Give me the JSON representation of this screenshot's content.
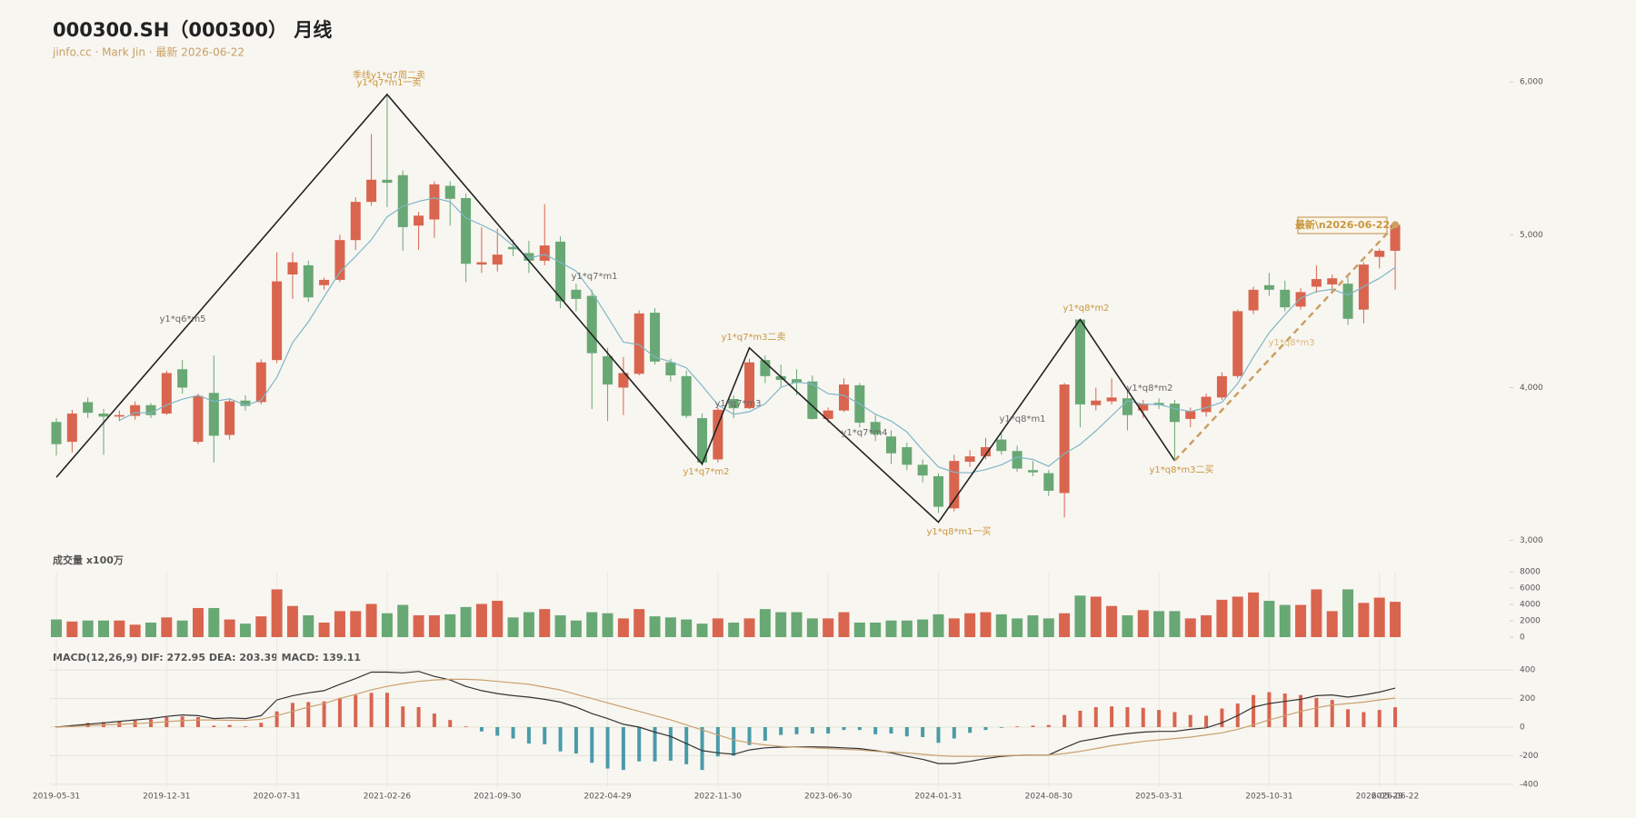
{
  "chart_data": {
    "type": "candlestick",
    "title": "000300.SH（000300） 月线",
    "subtitle": "jinfo.cc · Mark Jin · 最新 2026-06-22",
    "categories": [
      "2019-05-31",
      null,
      null,
      null,
      null,
      null,
      null,
      "2019-12-31",
      null,
      null,
      null,
      null,
      null,
      null,
      "2020-07-31",
      null,
      null,
      null,
      null,
      null,
      null,
      "2021-02-26",
      null,
      null,
      null,
      null,
      null,
      null,
      "2021-09-30",
      null,
      null,
      null,
      null,
      null,
      null,
      "2022-04-29",
      null,
      null,
      null,
      null,
      null,
      null,
      "2022-11-30",
      null,
      null,
      null,
      null,
      null,
      null,
      "2023-06-30",
      null,
      null,
      null,
      null,
      null,
      null,
      "2024-01-31",
      null,
      null,
      null,
      null,
      null,
      null,
      "2024-08-30",
      null,
      null,
      null,
      null,
      null,
      null,
      "2025-03-31",
      null,
      null,
      null,
      null,
      null,
      null,
      "2025-10-31",
      null,
      null,
      null,
      null,
      null,
      null,
      "2026-05-29",
      "2026-06-22"
    ],
    "ohlc": [
      [
        3775,
        3800,
        3555,
        3630
      ],
      [
        3645,
        3855,
        3575,
        3830
      ],
      [
        3905,
        3935,
        3800,
        3835
      ],
      [
        3830,
        3860,
        3560,
        3810
      ],
      [
        3810,
        3850,
        3780,
        3820
      ],
      [
        3815,
        3910,
        3790,
        3885
      ],
      [
        3885,
        3900,
        3800,
        3820
      ],
      [
        3830,
        4110,
        3820,
        4095
      ],
      [
        4120,
        4180,
        3960,
        4000
      ],
      [
        3645,
        3960,
        3630,
        3945
      ],
      [
        3965,
        4210,
        3510,
        3685
      ],
      [
        3690,
        3925,
        3660,
        3910
      ],
      [
        3915,
        3950,
        3850,
        3880
      ],
      [
        3905,
        4185,
        3890,
        4165
      ],
      [
        4180,
        4885,
        4160,
        4695
      ],
      [
        4740,
        4885,
        4580,
        4820
      ],
      [
        4800,
        4830,
        4560,
        4590
      ],
      [
        4670,
        4720,
        4640,
        4705
      ],
      [
        4705,
        5000,
        4690,
        4965
      ],
      [
        4965,
        5245,
        4900,
        5215
      ],
      [
        5215,
        5660,
        5190,
        5360
      ],
      [
        5360,
        5920,
        5180,
        5340
      ],
      [
        5390,
        5420,
        4895,
        5050
      ],
      [
        5060,
        5150,
        4900,
        5125
      ],
      [
        5100,
        5350,
        4980,
        5330
      ],
      [
        5320,
        5350,
        5060,
        5235
      ],
      [
        5240,
        5270,
        4690,
        4810
      ],
      [
        4805,
        5050,
        4750,
        4820
      ],
      [
        4805,
        5040,
        4760,
        4870
      ],
      [
        4920,
        4970,
        4860,
        4905
      ],
      [
        4880,
        4960,
        4750,
        4830
      ],
      [
        4830,
        5200,
        4800,
        4930
      ],
      [
        4955,
        4990,
        4520,
        4565
      ],
      [
        4640,
        4680,
        4500,
        4580
      ],
      [
        4600,
        4640,
        3860,
        4225
      ],
      [
        4205,
        4260,
        3780,
        4020
      ],
      [
        4000,
        4200,
        3820,
        4095
      ],
      [
        4090,
        4505,
        4080,
        4485
      ],
      [
        4490,
        4520,
        4150,
        4170
      ],
      [
        4165,
        4190,
        4040,
        4080
      ],
      [
        4075,
        4110,
        3800,
        3815
      ],
      [
        3800,
        3830,
        3490,
        3510
      ],
      [
        3530,
        3870,
        3510,
        3855
      ],
      [
        3925,
        3950,
        3800,
        3865
      ],
      [
        3865,
        4190,
        3860,
        4165
      ],
      [
        4180,
        4210,
        4030,
        4075
      ],
      [
        4075,
        4150,
        4000,
        4050
      ],
      [
        4055,
        4120,
        3950,
        4030
      ],
      [
        4040,
        4080,
        3790,
        3795
      ],
      [
        3795,
        3870,
        3770,
        3850
      ],
      [
        3850,
        4060,
        3840,
        4020
      ],
      [
        4015,
        4030,
        3740,
        3770
      ],
      [
        3775,
        3820,
        3650,
        3695
      ],
      [
        3680,
        3720,
        3500,
        3570
      ],
      [
        3610,
        3640,
        3460,
        3495
      ],
      [
        3495,
        3530,
        3380,
        3425
      ],
      [
        3420,
        3440,
        3180,
        3220
      ],
      [
        3210,
        3560,
        3190,
        3520
      ],
      [
        3515,
        3590,
        3480,
        3550
      ],
      [
        3550,
        3670,
        3530,
        3610
      ],
      [
        3660,
        3700,
        3560,
        3585
      ],
      [
        3585,
        3620,
        3450,
        3470
      ],
      [
        3460,
        3520,
        3420,
        3445
      ],
      [
        3440,
        3460,
        3290,
        3325
      ],
      [
        3310,
        4030,
        3150,
        4020
      ],
      [
        4445,
        4450,
        3740,
        3890
      ],
      [
        3885,
        4000,
        3850,
        3915
      ],
      [
        3910,
        4060,
        3890,
        3935
      ],
      [
        3930,
        3980,
        3720,
        3820
      ],
      [
        3850,
        3920,
        3800,
        3895
      ],
      [
        3900,
        3930,
        3860,
        3885
      ],
      [
        3895,
        3920,
        3520,
        3775
      ],
      [
        3795,
        3870,
        3740,
        3845
      ],
      [
        3840,
        3960,
        3810,
        3940
      ],
      [
        3935,
        4100,
        3920,
        4075
      ],
      [
        4075,
        4510,
        4060,
        4500
      ],
      [
        4505,
        4660,
        4480,
        4640
      ],
      [
        4670,
        4750,
        4600,
        4640
      ],
      [
        4640,
        4700,
        4500,
        4525
      ],
      [
        4530,
        4650,
        4510,
        4625
      ],
      [
        4660,
        4800,
        4620,
        4710
      ],
      [
        4675,
        4740,
        4620,
        4715
      ],
      [
        4680,
        4720,
        4410,
        4450
      ],
      [
        4510,
        4820,
        4420,
        4805
      ],
      [
        4855,
        4910,
        4780,
        4895
      ],
      [
        4895,
        5080,
        4640,
        5065
      ]
    ],
    "up_color": "#d9654f",
    "down_color": "#68a874",
    "ma": {
      "color": "#7fb6c6",
      "values": [
        null,
        null,
        null,
        null,
        3785,
        3836,
        3834,
        3886,
        3924,
        3949,
        3909,
        3927,
        3884,
        3917,
        4067,
        4294,
        4430,
        4595,
        4755,
        4859,
        4967,
        5117,
        5186,
        5218,
        5241,
        5216,
        5110,
        5064,
        5013,
        4928,
        4847,
        4871,
        4820,
        4762,
        4626,
        4464,
        4297,
        4281,
        4199,
        4170,
        4129,
        4012,
        3886,
        3825,
        3842,
        3894,
        4002,
        4037,
        4023,
        3960,
        3949,
        3893,
        3826,
        3781,
        3710,
        3591,
        3481,
        3446,
        3442,
        3463,
        3495,
        3545,
        3530,
        3485,
        3567,
        3628,
        3717,
        3815,
        3914,
        3891,
        3890,
        3862,
        3844,
        3868,
        3904,
        4027,
        4200,
        4359,
        4476,
        4586,
        4628,
        4643,
        4605,
        4661,
        4715,
        4786
      ]
    },
    "zigzag": {
      "color": "#222222",
      "x": [
        0,
        21,
        41,
        44,
        56,
        65,
        71
      ],
      "values": [
        3413,
        5918,
        3500,
        4260,
        3119,
        4445,
        3522
      ]
    },
    "trend": {
      "color": "#c9a063",
      "dashed": true,
      "x": [
        71,
        85
      ],
      "values": [
        3522,
        5065
      ]
    },
    "ylim": [
      2950,
      6090
    ],
    "yticks": [
      {
        "value": 3000,
        "label": "3,000"
      },
      {
        "value": 4000,
        "label": "4,000"
      },
      {
        "value": 5000,
        "label": "5,000"
      },
      {
        "value": 6000,
        "label": "6,000"
      }
    ],
    "annotations": [
      {
        "text": "季线y1*q7周二卖",
        "color": "#c9963e"
      },
      {
        "text": "y1*q7*m1一卖",
        "color": "#c9963e"
      },
      {
        "text": "y1*q6*m5",
        "color": "#666666"
      },
      {
        "text": "y1*q7*m1",
        "color": "#666666"
      },
      {
        "text": "y1*q7*m3二卖",
        "color": "#c9963e"
      },
      {
        "text": "y1*q7*m2",
        "color": "#c9963e"
      },
      {
        "text": "y1*q7*m3",
        "color": "#666666"
      },
      {
        "text": "y1*q7*m4",
        "color": "#666666"
      },
      {
        "text": "y1*q8*m1一买",
        "color": "#c9963e"
      },
      {
        "text": "y1*q8*m1",
        "color": "#666666"
      },
      {
        "text": "y1*q8*m2",
        "color": "#c9963e"
      },
      {
        "text": "y1*q8*m2",
        "color": "#666666"
      },
      {
        "text": "y1*q8*m3二买",
        "color": "#c9963e"
      },
      {
        "text": "y1*q8*m3",
        "color": "#dcb878"
      }
    ],
    "latest_label": "最新\\n2026-06-22",
    "volume": {
      "label": "成交量 x100万",
      "ylim": [
        0,
        8000
      ],
      "yticks": [
        0,
        2000,
        4000,
        6000,
        8000
      ],
      "values": [
        2160,
        1910,
        2030,
        2030,
        2030,
        1520,
        1780,
        2410,
        2030,
        3560,
        3560,
        2160,
        1650,
        2540,
        5840,
        3810,
        2670,
        1780,
        3180,
        3180,
        4060,
        2920,
        3940,
        2670,
        2670,
        2790,
        3680,
        4060,
        4440,
        2410,
        3050,
        3430,
        2670,
        2030,
        3050,
        2920,
        2290,
        3430,
        2540,
        2410,
        2160,
        1650,
        2290,
        1780,
        2290,
        3430,
        3050,
        3050,
        2290,
        2290,
        3050,
        1780,
        1780,
        2030,
        2030,
        2160,
        2790,
        2290,
        2920,
        3050,
        2790,
        2290,
        2670,
        2290,
        2920,
        5080,
        4950,
        3810,
        2670,
        3300,
        3180,
        3180,
        2290,
        2670,
        4570,
        4950,
        5460,
        4440,
        3940,
        3940,
        5840,
        3180,
        5840,
        4190,
        4830,
        4320
      ]
    },
    "macd": {
      "label": "MACD(12,26,9) DIF: 272.95 DEA: 203.39 MACD: 139.11",
      "ylim": [
        -420,
        420
      ],
      "yticks": [
        -400,
        -200,
        0,
        200,
        400
      ],
      "pos_color": "#d9654f",
      "neg_color": "#4a9ba8",
      "dif_color": "#333333",
      "dea_color": "#c9a06e",
      "hist": [
        5,
        15,
        30,
        35,
        40,
        45,
        55,
        70,
        75,
        70,
        10,
        15,
        5,
        30,
        110,
        170,
        175,
        180,
        205,
        225,
        240,
        240,
        145,
        140,
        95,
        50,
        5,
        -30,
        -60,
        -80,
        -115,
        -120,
        -170,
        -185,
        -250,
        -290,
        -300,
        -240,
        -240,
        -235,
        -260,
        -300,
        -205,
        -200,
        -125,
        -95,
        -55,
        -50,
        -45,
        -45,
        -20,
        -20,
        -50,
        -45,
        -65,
        -70,
        -110,
        -80,
        -40,
        -20,
        -5,
        5,
        10,
        15,
        85,
        115,
        140,
        145,
        140,
        135,
        120,
        105,
        85,
        80,
        130,
        165,
        225,
        245,
        235,
        225,
        205,
        190,
        125,
        105,
        120,
        139.11
      ],
      "dif": [
        0,
        10,
        20,
        30,
        40,
        50,
        60,
        75,
        85,
        80,
        60,
        65,
        60,
        80,
        190,
        220,
        240,
        255,
        300,
        340,
        385,
        385,
        380,
        390,
        355,
        330,
        285,
        255,
        235,
        220,
        210,
        195,
        175,
        140,
        95,
        60,
        20,
        0,
        -35,
        -65,
        -115,
        -165,
        -180,
        -190,
        -160,
        -145,
        -140,
        -138,
        -138,
        -140,
        -145,
        -150,
        -165,
        -180,
        -205,
        -225,
        -255,
        -255,
        -240,
        -220,
        -205,
        -198,
        -195,
        -195,
        -145,
        -100,
        -80,
        -60,
        -45,
        -35,
        -30,
        -30,
        -15,
        -5,
        30,
        80,
        140,
        165,
        180,
        195,
        220,
        225,
        210,
        225,
        245,
        272.95
      ],
      "dea": [
        0,
        5,
        10,
        15,
        20,
        25,
        30,
        38,
        45,
        50,
        50,
        48,
        48,
        55,
        80,
        110,
        140,
        165,
        200,
        230,
        260,
        285,
        305,
        320,
        330,
        335,
        335,
        330,
        320,
        310,
        300,
        280,
        260,
        230,
        200,
        170,
        140,
        110,
        80,
        50,
        15,
        -20,
        -55,
        -90,
        -110,
        -125,
        -135,
        -140,
        -145,
        -150,
        -155,
        -160,
        -170,
        -175,
        -180,
        -190,
        -200,
        -205,
        -205,
        -205,
        -200,
        -198,
        -195,
        -195,
        -185,
        -170,
        -150,
        -130,
        -115,
        -100,
        -90,
        -80,
        -70,
        -55,
        -40,
        -15,
        15,
        50,
        80,
        110,
        135,
        155,
        165,
        175,
        190,
        203.39
      ]
    }
  }
}
